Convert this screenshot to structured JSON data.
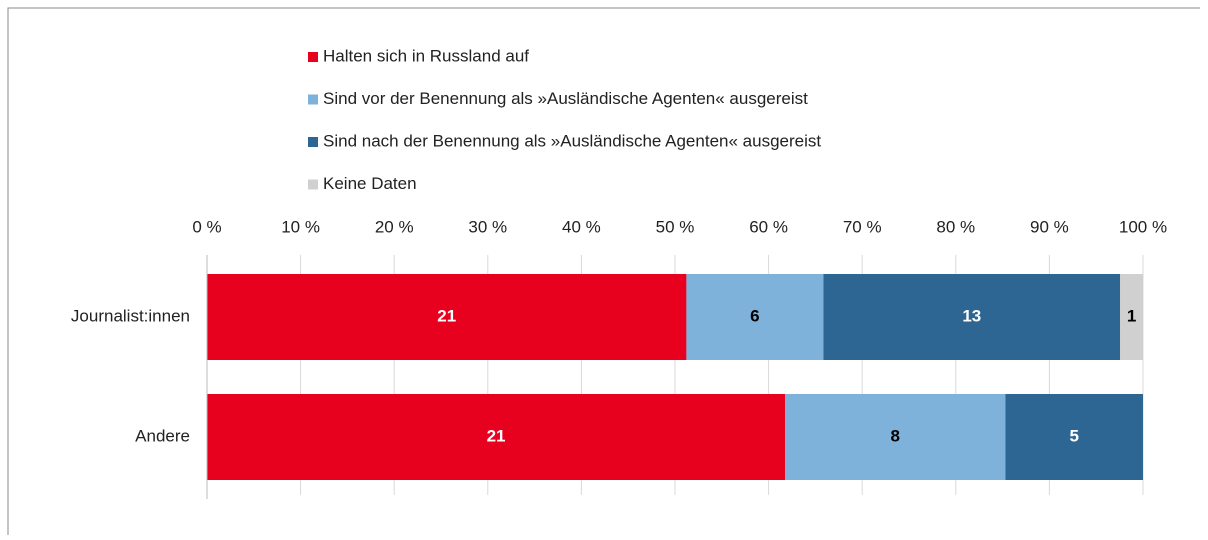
{
  "chart_data": {
    "type": "bar",
    "orientation": "horizontal",
    "stack": "percent",
    "categories": [
      "Journalist:innen",
      "Andere"
    ],
    "series": [
      {
        "name": "Halten sich in Russland auf",
        "color": "#e8001f",
        "label_color": "#ffffff",
        "values": [
          21,
          21
        ]
      },
      {
        "name": "Sind vor der Benennung als »Ausländische Agenten« ausgereist",
        "color": "#7fb2da",
        "label_color": "#000000",
        "values": [
          6,
          8
        ]
      },
      {
        "name": "Sind nach der Benennung als »Ausländische Agenten« ausgereist",
        "color": "#2d6693",
        "label_color": "#ffffff",
        "values": [
          13,
          5
        ]
      },
      {
        "name": "Keine Daten",
        "color": "#d0d0d0",
        "label_color": "#000000",
        "values": [
          1,
          null
        ]
      }
    ],
    "xlim": [
      0,
      100
    ],
    "xticks": [
      {
        "value": 0,
        "label": "0 %"
      },
      {
        "value": 10,
        "label": "10 %"
      },
      {
        "value": 20,
        "label": "20 %"
      },
      {
        "value": 30,
        "label": "30 %"
      },
      {
        "value": 40,
        "label": "40 %"
      },
      {
        "value": 50,
        "label": "50 %"
      },
      {
        "value": 60,
        "label": "60 %"
      },
      {
        "value": 70,
        "label": "70 %"
      },
      {
        "value": 80,
        "label": "80 %"
      },
      {
        "value": 90,
        "label": "90 %"
      },
      {
        "value": 100,
        "label": "100 %"
      }
    ],
    "grid": true,
    "legend": "top"
  }
}
